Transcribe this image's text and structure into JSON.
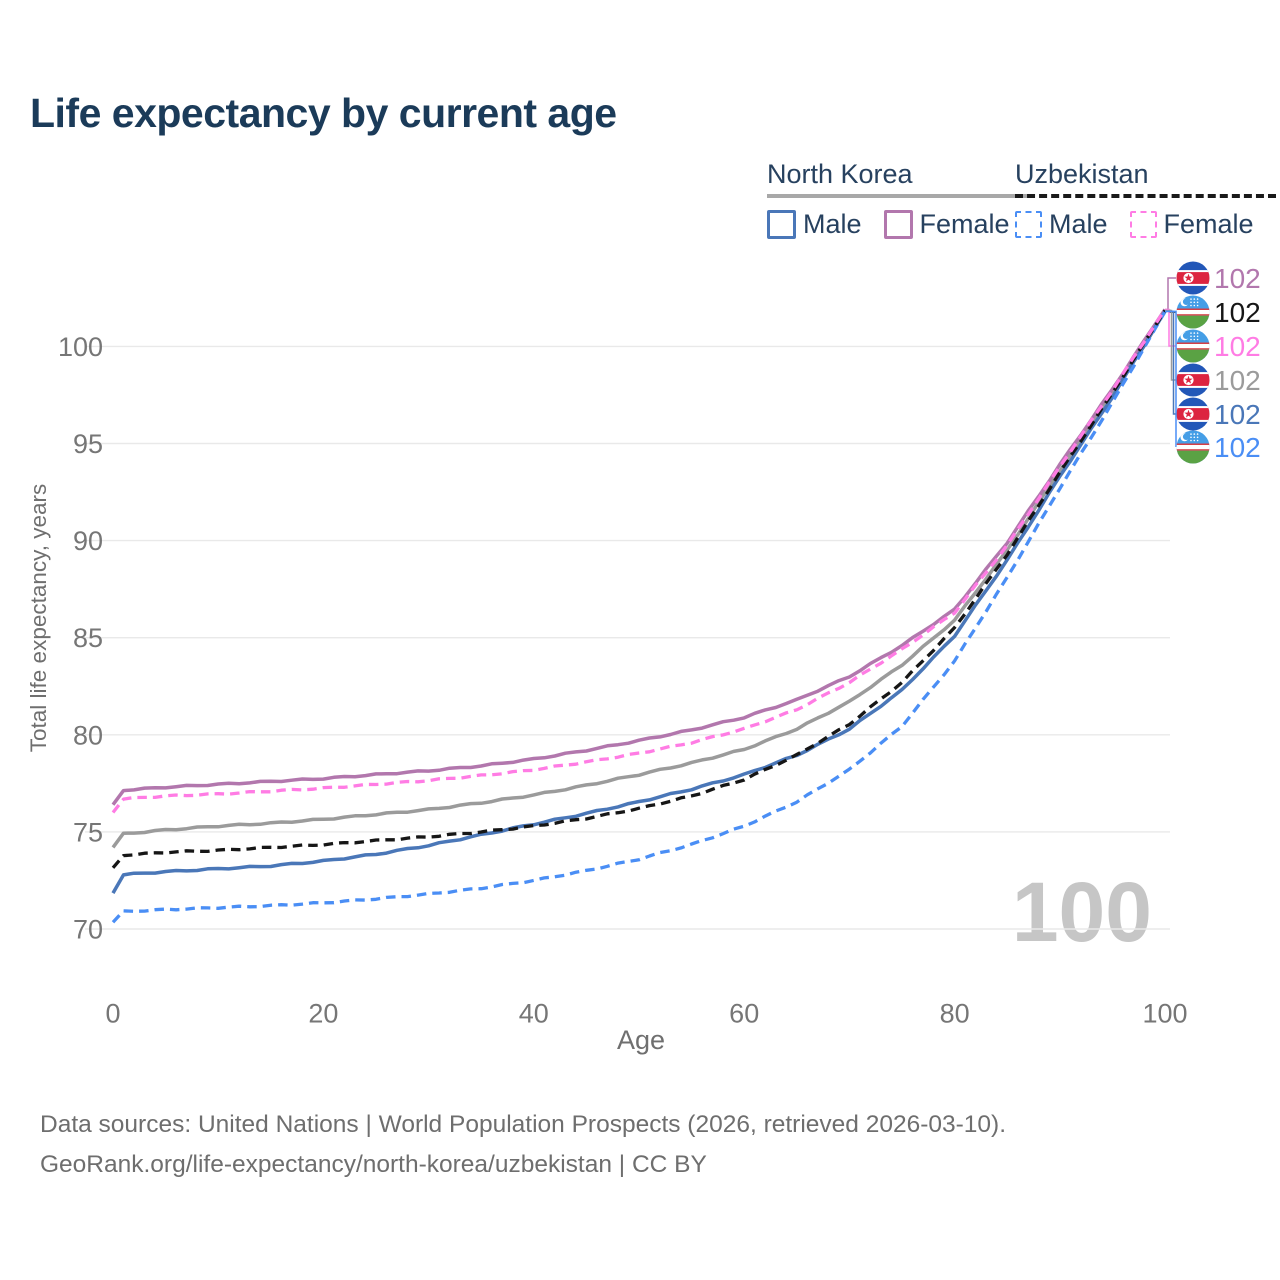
{
  "page": {
    "title": "Life expectancy by current age"
  },
  "legend": {
    "groups": [
      {
        "id": "north-korea",
        "label": "North Korea",
        "line_style": "solid",
        "underline_color": "#a8a8a8",
        "items": [
          {
            "label": "Male",
            "color": "#4a77b8",
            "dashed": false
          },
          {
            "label": "Female",
            "color": "#b277ad",
            "dashed": false
          }
        ]
      },
      {
        "id": "uzbekistan",
        "label": "Uzbekistan",
        "line_style": "dashed",
        "underline_color": "#1a1a1a",
        "items": [
          {
            "label": "Male",
            "color": "#4a8ef5",
            "dashed": true
          },
          {
            "label": "Female",
            "color": "#ff7ce4",
            "dashed": true
          }
        ]
      }
    ]
  },
  "chart_data": {
    "type": "line",
    "title": "Life expectancy by current age",
    "xlabel": "Age",
    "ylabel": "Total life expectancy, years",
    "x_ticks": [
      0,
      20,
      40,
      60,
      80,
      100
    ],
    "y_ticks": [
      70,
      75,
      80,
      85,
      90,
      95,
      100
    ],
    "xlim": [
      0,
      100
    ],
    "ylim": [
      67,
      103.5
    ],
    "grid": "horizontal-only",
    "watermark": "100",
    "ages": [
      0,
      1,
      5,
      10,
      15,
      20,
      25,
      30,
      35,
      40,
      45,
      50,
      55,
      60,
      65,
      70,
      75,
      80,
      85,
      90,
      95,
      100
    ],
    "series": [
      {
        "id": "nk-total",
        "name": "North Korea Total",
        "country": "North Korea",
        "sex": "Both",
        "color": "#9b9b9b",
        "dashed": false,
        "flag": "north-korea",
        "end_label": "102",
        "values": [
          74.2,
          74.9,
          75.1,
          75.3,
          75.45,
          75.65,
          75.9,
          76.15,
          76.5,
          76.9,
          77.4,
          77.95,
          78.55,
          79.25,
          80.3,
          81.7,
          83.6,
          85.9,
          89.5,
          93.6,
          97.6,
          101.85
        ]
      },
      {
        "id": "nk-female",
        "name": "North Korea Female",
        "country": "North Korea",
        "sex": "Female",
        "color": "#b277ad",
        "dashed": false,
        "flag": "north-korea",
        "end_label": "102",
        "values": [
          76.4,
          77.15,
          77.3,
          77.45,
          77.6,
          77.75,
          77.95,
          78.15,
          78.4,
          78.75,
          79.2,
          79.7,
          80.25,
          80.9,
          81.8,
          83.0,
          84.6,
          86.45,
          89.9,
          93.9,
          97.8,
          101.9
        ]
      },
      {
        "id": "nk-male",
        "name": "North Korea Male",
        "country": "North Korea",
        "sex": "Male",
        "color": "#4a77b8",
        "dashed": false,
        "flag": "north-korea",
        "end_label": "102",
        "values": [
          71.85,
          72.8,
          72.95,
          73.1,
          73.25,
          73.5,
          73.85,
          74.3,
          74.85,
          75.4,
          75.95,
          76.55,
          77.2,
          77.95,
          78.95,
          80.3,
          82.3,
          85.1,
          89.0,
          93.3,
          97.4,
          101.8
        ]
      },
      {
        "id": "uz-male",
        "name": "Uzbekistan Male",
        "country": "Uzbekistan",
        "sex": "Male",
        "color": "#4a8ef5",
        "dashed": true,
        "flag": "uzbekistan",
        "end_label": "102",
        "values": [
          70.35,
          70.9,
          71.0,
          71.1,
          71.2,
          71.35,
          71.55,
          71.8,
          72.1,
          72.5,
          73.0,
          73.6,
          74.35,
          75.3,
          76.55,
          78.2,
          80.45,
          83.8,
          88.1,
          92.7,
          97.1,
          101.8
        ]
      },
      {
        "id": "uz-total",
        "name": "Uzbekistan Total",
        "country": "Uzbekistan",
        "sex": "Both",
        "color": "#161616",
        "dashed": true,
        "flag": "uzbekistan",
        "end_label": "102",
        "values": [
          73.15,
          73.8,
          73.95,
          74.05,
          74.2,
          74.35,
          74.55,
          74.75,
          75.0,
          75.3,
          75.7,
          76.2,
          76.85,
          77.7,
          78.95,
          80.55,
          82.7,
          85.5,
          89.3,
          93.5,
          97.6,
          101.85
        ]
      },
      {
        "id": "uz-female",
        "name": "Uzbekistan Female",
        "country": "Uzbekistan",
        "sex": "Female",
        "color": "#ff7ce4",
        "dashed": true,
        "flag": "uzbekistan",
        "end_label": "102",
        "values": [
          76.0,
          76.7,
          76.85,
          76.95,
          77.1,
          77.25,
          77.45,
          77.65,
          77.9,
          78.2,
          78.6,
          79.05,
          79.6,
          80.3,
          81.3,
          82.7,
          84.4,
          86.3,
          89.75,
          93.8,
          97.75,
          101.9
        ]
      }
    ],
    "end_label_order": [
      "nk-female",
      "uz-total",
      "uz-female",
      "nk-total",
      "nk-male",
      "uz-male"
    ]
  },
  "footer": {
    "line1": "Data sources: United Nations | World Population Prospects (2026, retrieved 2026-03-10).",
    "line2": "GeoRank.org/life-expectancy/north-korea/uzbekistan | CC BY"
  }
}
